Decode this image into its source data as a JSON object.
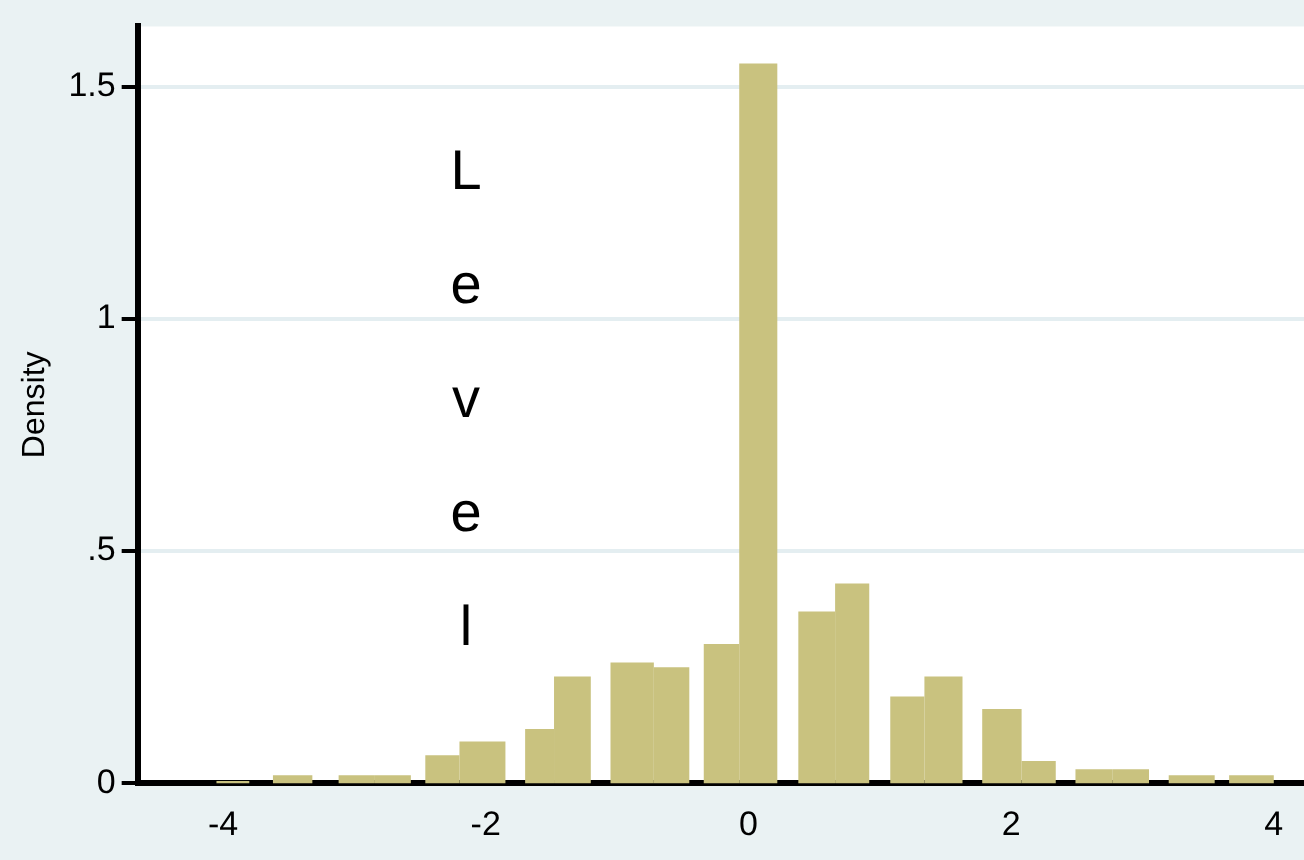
{
  "chart_data": {
    "type": "histogram",
    "ylabel": "Density",
    "annotations": [
      "Level"
    ],
    "bins": [
      -4.05,
      -3.8,
      -3.62,
      -3.32,
      -3.12,
      -2.85,
      -2.57,
      -2.46,
      -2.2,
      -1.85,
      -1.7,
      -1.48,
      -1.2,
      -1.05,
      -0.72,
      -0.45,
      -0.34,
      -0.07,
      0.22,
      0.38,
      0.66,
      0.92,
      1.08,
      1.34,
      1.63,
      1.78,
      2.08,
      2.34,
      2.49,
      2.77,
      3.05,
      3.2,
      3.55,
      3.66,
      4.0
    ],
    "values": [
      0.005,
      0,
      0.017,
      0,
      0.017,
      0.017,
      0,
      0.06,
      0.09,
      0,
      0.117,
      0.23,
      0,
      0.26,
      0.25,
      0,
      0.3,
      1.55,
      0,
      0.37,
      0.43,
      0,
      0.187,
      0.23,
      0,
      0.16,
      0.048,
      0,
      0.03,
      0.03,
      0,
      0.017,
      0,
      0.017
    ],
    "color": "#c9c27f",
    "xlim": [
      -4.65,
      4.23
    ],
    "xticks": [
      -4,
      -2,
      0,
      2,
      4
    ],
    "ylim": [
      0,
      1.63
    ],
    "yticks": [
      0,
      {
        "value": 0.5,
        "label": ".5"
      },
      1,
      1.5
    ],
    "grid": "y"
  }
}
